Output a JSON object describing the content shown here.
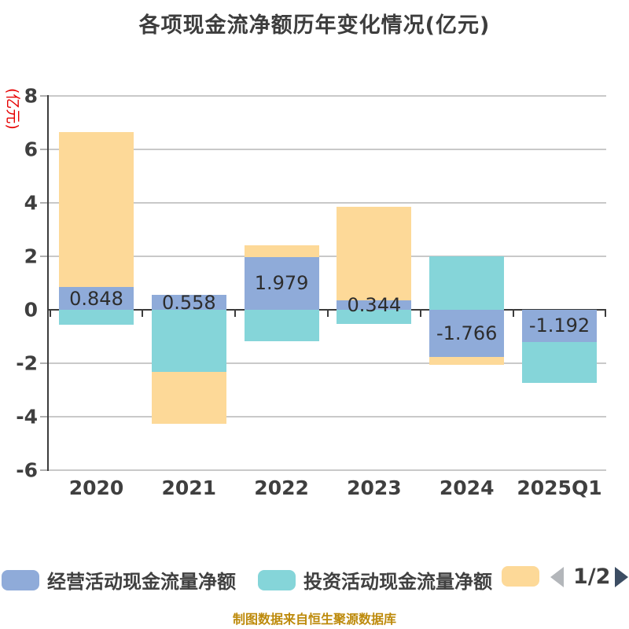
{
  "title": "各项现金流净额历年变化情况(亿元)",
  "y_axis_label": "(亿元)",
  "footer": "制图数据来自恒生聚源数据库",
  "legend": {
    "items": [
      {
        "label": "经营活动现金流量净额",
        "color": "#8fabd9"
      },
      {
        "label": "投资活动现金流量净额",
        "color": "#85d5d9"
      },
      {
        "label": "",
        "color": "#fdd998"
      }
    ],
    "pagination": {
      "current": "1/2",
      "prev_icon": "left-triangle",
      "prev_color": "#b3b6ba",
      "next_icon": "right-triangle",
      "next_color": "#3c4d63"
    }
  },
  "chart_data": {
    "type": "bar",
    "stacked": true,
    "title": "各项现金流净额历年变化情况(亿元)",
    "ylabel": "(亿元)",
    "ylim": [
      -6,
      8
    ],
    "ytick_interval": 2,
    "yticks": [
      8,
      6,
      4,
      2,
      0,
      -2,
      -4,
      -6
    ],
    "grid": true,
    "legend_position": "bottom",
    "categories": [
      "2020",
      "2021",
      "2022",
      "2023",
      "2024",
      "2025Q1"
    ],
    "series": [
      {
        "name": "经营活动现金流量净额",
        "color": "#8fabd9",
        "values": [
          0.848,
          0.558,
          1.979,
          0.344,
          -1.766,
          -1.192
        ],
        "labels": [
          "0.848",
          "0.558",
          "1.979",
          "0.344",
          "-1.766",
          "-1.192"
        ]
      },
      {
        "name": "投资活动现金流量净额",
        "color": "#85d5d9",
        "values": [
          -0.56,
          -2.32,
          -1.18,
          -0.53,
          2.0,
          -1.55
        ]
      },
      {
        "name": "",
        "color": "#fdd998",
        "values": [
          5.8,
          -1.94,
          0.43,
          3.5,
          -0.3,
          0
        ]
      }
    ]
  },
  "colors": {
    "operating_bar": "#8fabd9",
    "investing_bar": "#85d5d9",
    "financing_bar": "#fdd998",
    "gridline": "#c9c9c9",
    "axis": "#3c3c3c",
    "title_text": "#3d3d3d",
    "tick_text": "#3f3f3f",
    "y_unit_text": "#e60000",
    "footer_text": "#bd8a0b"
  }
}
